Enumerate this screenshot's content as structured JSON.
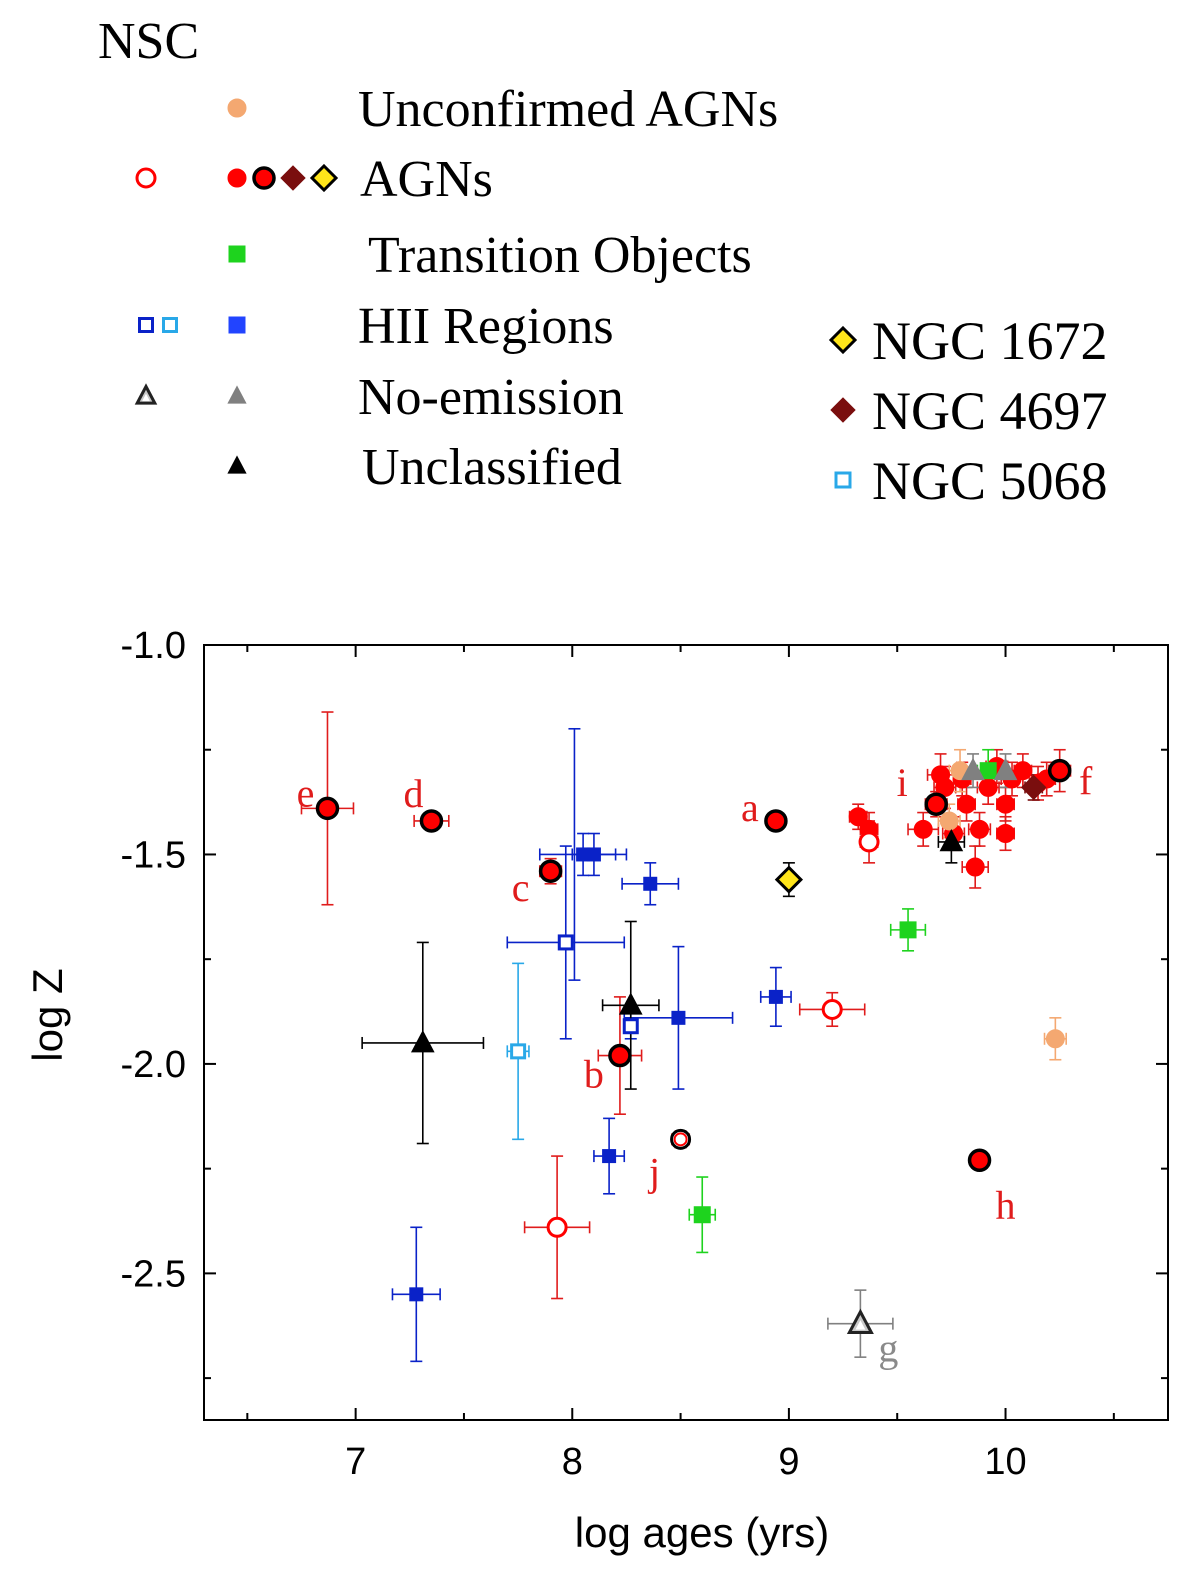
{
  "legend": {
    "title": "NSC",
    "rows": [
      {
        "key": "unconfirmed",
        "label": "Unconfirmed AGNs"
      },
      {
        "key": "agn",
        "label": "AGNs"
      },
      {
        "key": "transition",
        "label": "Transition Objects"
      },
      {
        "key": "hii",
        "label": "HII Regions"
      },
      {
        "key": "noemission",
        "label": "No-emission"
      },
      {
        "key": "unclassified",
        "label": "Unclassified"
      }
    ],
    "named": [
      {
        "key": "ngc1672",
        "label": "NGC 1672"
      },
      {
        "key": "ngc4697",
        "label": "NGC 4697"
      },
      {
        "key": "ngc5068",
        "label": "NGC 5068"
      }
    ]
  },
  "colors": {
    "agn": "#ff0000",
    "agn_err": "#e01c1c",
    "unconfirmed": "#f4a871",
    "transition": "#1ed31e",
    "hii": "#0a22c8",
    "hii_legend": "#2244ff",
    "ngc5068": "#29a8e8",
    "noemission": "#808080",
    "unclassified": "#000000",
    "ngc4697": "#7a0e0e",
    "ngc1672": "#ffe51a",
    "label_red": "#e01c1c",
    "label_gray": "#8a8a8a"
  },
  "chart_data": {
    "type": "scatter",
    "xlabel": "log ages (yrs)",
    "ylabel": "log Z",
    "xlim": [
      6.3,
      10.75
    ],
    "ylim": [
      -2.85,
      -1.0
    ],
    "xticks": [
      {
        "value": 7,
        "label": "7"
      },
      {
        "value": 8,
        "label": "8"
      },
      {
        "value": 9,
        "label": "9"
      },
      {
        "value": 10,
        "label": "10"
      }
    ],
    "xminor": [
      6.5,
      7.5,
      8.5,
      9.5,
      10.5
    ],
    "yticks": [
      {
        "value": -1.0,
        "label": "-1.0"
      },
      {
        "value": -1.5,
        "label": "-1.5"
      },
      {
        "value": -2.0,
        "label": "-2.0"
      },
      {
        "value": -2.5,
        "label": "-2.5"
      }
    ],
    "yminor": [
      -1.25,
      -1.75,
      -2.25,
      -2.75
    ],
    "points": [
      {
        "id": "e",
        "x": 6.87,
        "y": -1.39,
        "style": "agn_ring",
        "xerr": 0.12,
        "yerr": 0.23
      },
      {
        "id": "d",
        "x": 7.35,
        "y": -1.42,
        "style": "agn_ring",
        "xerr": 0.08,
        "yerr": 0.02
      },
      {
        "id": "c",
        "x": 7.9,
        "y": -1.54,
        "style": "agn_ring",
        "xerr": 0.05,
        "yerr": 0.03
      },
      {
        "id": "a",
        "x": 8.94,
        "y": -1.42,
        "style": "agn_ring",
        "xerr": 0.03,
        "yerr": 0.01
      },
      {
        "id": "b",
        "x": 8.22,
        "y": -1.98,
        "style": "agn_ring",
        "xerr": 0.1,
        "yerr": 0.14
      },
      {
        "id": "j",
        "x": 8.5,
        "y": -2.18,
        "style": "agn_open_ring",
        "xerr": 0.04,
        "yerr": 0.02
      },
      {
        "id": "h",
        "x": 9.88,
        "y": -2.23,
        "style": "agn_ring",
        "xerr": 0.04,
        "yerr": 0.02
      },
      {
        "id": "i",
        "x": 9.68,
        "y": -1.38,
        "style": "agn_ring",
        "xerr": 0.05,
        "yerr": 0.03
      },
      {
        "id": "f",
        "x": 10.25,
        "y": -1.3,
        "style": "agn_ring",
        "xerr": 0.05,
        "yerr": 0.05
      },
      {
        "x": 7.93,
        "y": -2.39,
        "style": "agn_open",
        "xerr": 0.15,
        "yerr": 0.17
      },
      {
        "x": 9.2,
        "y": -1.87,
        "style": "agn_open",
        "xerr": 0.15,
        "yerr": 0.04
      },
      {
        "x": 9.37,
        "y": -1.47,
        "style": "agn_open",
        "xerr": 0.04,
        "yerr": 0.05
      },
      {
        "x": 9.32,
        "y": -1.41,
        "style": "agn_filled",
        "xerr": 0.04,
        "yerr": 0.03
      },
      {
        "x": 9.37,
        "y": -1.44,
        "style": "agn_filled",
        "xerr": 0.04,
        "yerr": 0.04
      },
      {
        "x": 9.62,
        "y": -1.44,
        "style": "agn_filled",
        "xerr": 0.07,
        "yerr": 0.04
      },
      {
        "x": 9.7,
        "y": -1.31,
        "style": "agn_filled",
        "xerr": 0.06,
        "yerr": 0.05
      },
      {
        "x": 9.72,
        "y": -1.34,
        "style": "agn_filled",
        "xerr": 0.05,
        "yerr": 0.05
      },
      {
        "x": 9.76,
        "y": -1.45,
        "style": "agn_filled",
        "xerr": 0.05,
        "yerr": 0.04
      },
      {
        "x": 9.8,
        "y": -1.32,
        "style": "agn_filled",
        "xerr": 0.04,
        "yerr": 0.04
      },
      {
        "x": 9.82,
        "y": -1.38,
        "style": "agn_filled",
        "xerr": 0.04,
        "yerr": 0.04
      },
      {
        "x": 9.86,
        "y": -1.53,
        "style": "agn_filled",
        "xerr": 0.06,
        "yerr": 0.05
      },
      {
        "x": 9.88,
        "y": -1.44,
        "style": "agn_filled",
        "xerr": 0.05,
        "yerr": 0.04
      },
      {
        "x": 9.92,
        "y": -1.34,
        "style": "agn_filled",
        "xerr": 0.05,
        "yerr": 0.04
      },
      {
        "x": 9.96,
        "y": -1.29,
        "style": "agn_filled",
        "xerr": 0.05,
        "yerr": 0.04
      },
      {
        "x": 10.0,
        "y": -1.38,
        "style": "agn_filled",
        "xerr": 0.04,
        "yerr": 0.04
      },
      {
        "x": 10.0,
        "y": -1.45,
        "style": "agn_filled",
        "xerr": 0.04,
        "yerr": 0.04
      },
      {
        "x": 10.03,
        "y": -1.32,
        "style": "agn_filled",
        "xerr": 0.05,
        "yerr": 0.04
      },
      {
        "x": 10.08,
        "y": -1.3,
        "style": "agn_filled",
        "xerr": 0.04,
        "yerr": 0.04
      },
      {
        "x": 10.15,
        "y": -1.33,
        "style": "agn_filled",
        "xerr": 0.04,
        "yerr": 0.04
      },
      {
        "x": 10.19,
        "y": -1.32,
        "style": "agn_filled",
        "xerr": 0.04,
        "yerr": 0.04
      },
      {
        "x": 9.74,
        "y": -1.42,
        "style": "unconfirmed",
        "xerr": 0.05,
        "yerr": 0.04
      },
      {
        "x": 9.79,
        "y": -1.3,
        "style": "unconfirmed",
        "xerr": 0.05,
        "yerr": 0.05
      },
      {
        "x": 10.23,
        "y": -1.94,
        "style": "unconfirmed",
        "xerr": 0.05,
        "yerr": 0.05
      },
      {
        "x": 9.92,
        "y": -1.3,
        "style": "transition",
        "xerr": 0.05,
        "yerr": 0.05
      },
      {
        "x": 9.55,
        "y": -1.68,
        "style": "transition",
        "xerr": 0.08,
        "yerr": 0.05
      },
      {
        "x": 8.6,
        "y": -2.36,
        "style": "transition",
        "xerr": 0.06,
        "yerr": 0.09
      },
      {
        "x": 8.05,
        "y": -1.5,
        "style": "hii",
        "xerr": 0.2,
        "yerr": 0.05
      },
      {
        "x": 8.1,
        "y": -1.5,
        "style": "hii",
        "xerr": 0.1,
        "yerr": 0.05
      },
      {
        "x": 8.36,
        "y": -1.57,
        "style": "hii",
        "xerr": 0.13,
        "yerr": 0.05
      },
      {
        "x": 8.94,
        "y": -1.84,
        "style": "hii",
        "xerr": 0.07,
        "yerr": 0.07
      },
      {
        "x": 8.49,
        "y": -1.89,
        "style": "hii",
        "xerr": 0.25,
        "yerr": 0.17
      },
      {
        "x": 8.17,
        "y": -2.22,
        "style": "hii",
        "xerr": 0.07,
        "yerr": 0.09
      },
      {
        "x": 7.28,
        "y": -2.55,
        "style": "hii",
        "xerr": 0.11,
        "yerr": 0.16
      },
      {
        "x": 7.97,
        "y": -1.71,
        "style": "hii_open",
        "xerr": 0.27,
        "yerr": 0.23
      },
      {
        "x": 8.27,
        "y": -1.91,
        "style": "hii_open",
        "xerr": 0.03,
        "yerr": 0.03
      },
      {
        "x": 8.01,
        "y": -1.5,
        "style": "hii_err_only",
        "xerr": 0,
        "yerr": 0.3
      },
      {
        "x": 7.75,
        "y": -1.97,
        "style": "ngc5068",
        "xerr": 0.05,
        "yerr": 0.21
      },
      {
        "x": 9.85,
        "y": -1.3,
        "style": "noemission",
        "xerr": 0.04,
        "yerr": 0.04
      },
      {
        "x": 10.0,
        "y": -1.3,
        "style": "noemission",
        "xerr": 0.05,
        "yerr": 0.04
      },
      {
        "id": "g",
        "x": 9.33,
        "y": -2.62,
        "style": "noemission_open",
        "xerr": 0.15,
        "yerr": 0.08
      },
      {
        "x": 7.31,
        "y": -1.95,
        "style": "unclassified",
        "xerr": 0.28,
        "yerr": 0.24
      },
      {
        "x": 8.27,
        "y": -1.86,
        "style": "unclassified",
        "xerr": 0.13,
        "yerr": 0.2
      },
      {
        "x": 9.75,
        "y": -1.47,
        "style": "unclassified",
        "xerr": 0.06,
        "yerr": 0.05
      },
      {
        "x": 10.13,
        "y": -1.34,
        "style": "ngc4697",
        "xerr": 0.04,
        "yerr": 0.03
      },
      {
        "x": 9.0,
        "y": -1.56,
        "style": "ngc1672",
        "xerr": 0.03,
        "yerr": 0.04
      }
    ],
    "labels": [
      {
        "text": "e",
        "point": "e"
      },
      {
        "text": "d",
        "point": "d"
      },
      {
        "text": "c",
        "point": "c"
      },
      {
        "text": "a",
        "point": "a"
      },
      {
        "text": "b",
        "point": "b"
      },
      {
        "text": "j",
        "point": "j"
      },
      {
        "text": "h",
        "point": "h"
      },
      {
        "text": "i",
        "point": "i"
      },
      {
        "text": "f",
        "point": "f"
      },
      {
        "text": "g",
        "point": "g"
      }
    ]
  }
}
